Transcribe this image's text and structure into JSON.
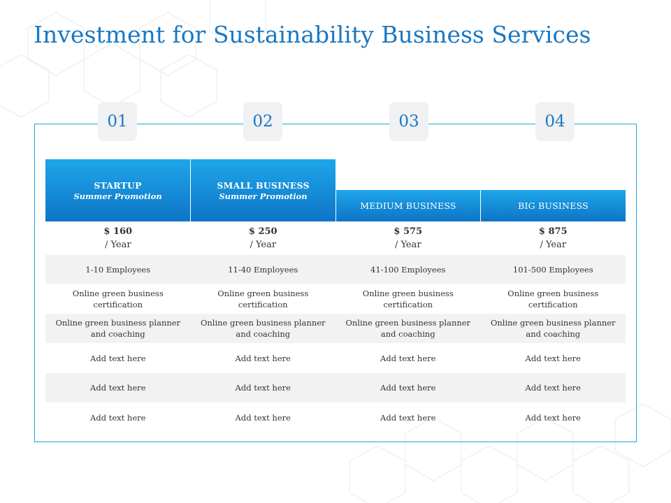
{
  "title": "Investment for Sustainability Business Services",
  "numbers": [
    "01",
    "02",
    "03",
    "04"
  ],
  "plans": [
    {
      "name": "STARTUP",
      "promo": "Summer Promotion",
      "price": "$ 160",
      "period": "/ Year"
    },
    {
      "name": "SMALL BUSINESS",
      "promo": "Summer Promotion",
      "price": "$ 250",
      "period": "/ Year"
    },
    {
      "name": "MEDIUM BUSINESS",
      "price": "$ 575",
      "period": "/ Year"
    },
    {
      "name": "BIG BUSINESS",
      "price": "$ 875",
      "period": "/ Year"
    }
  ],
  "rows": [
    [
      "1-10 Employees",
      "11-40 Employees",
      "41-100 Employees",
      "101-500 Employees"
    ],
    [
      [
        "Online green  business",
        "certification"
      ],
      [
        "Online green  business",
        "certification"
      ],
      [
        "Online green  business",
        "certification"
      ],
      [
        "Online green  business",
        "certification"
      ]
    ],
    [
      [
        "Online green  business planner",
        "and coaching"
      ],
      [
        "Online green  business planner",
        "and coaching"
      ],
      [
        "Online green  business planner",
        "and coaching"
      ],
      [
        "Online green  business planner",
        "and coaching"
      ]
    ],
    [
      "Add text here",
      "Add text here",
      "Add text here",
      "Add text here"
    ],
    [
      "Add text here",
      "Add text here",
      "Add text here",
      "Add text here"
    ],
    [
      "Add text here",
      "Add text here",
      "Add text here",
      "Add text here"
    ]
  ],
  "colors": {
    "accent": "#1a78c2",
    "header_top": "#1ea6e9",
    "header_bottom": "#0e74c7",
    "frame": "#1ea3e0",
    "row_alt": "#f2f2f2"
  }
}
